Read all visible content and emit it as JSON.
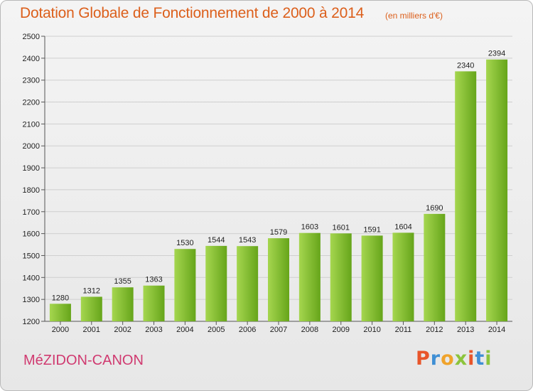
{
  "header": {
    "title": "Dotation Globale de Fonctionnement de 2000 à 2014",
    "unit": "(en milliers d'€)"
  },
  "footer": {
    "town": "MéZIDON-CANON",
    "logo_letters": [
      "P",
      "r",
      "o",
      "x",
      "i",
      "t",
      "i"
    ],
    "logo_colors": [
      "#e8552a",
      "#3f8fd4",
      "#f0a32b",
      "#8cc43c",
      "#e8552a",
      "#3f8fd4",
      "#8cc43c"
    ]
  },
  "colors": {
    "bar_light": "#a5d64f",
    "bar_dark": "#66a51a",
    "title": "#dc5f1b",
    "town": "#d03a70"
  },
  "chart_data": {
    "type": "bar",
    "title": "Dotation Globale de Fonctionnement de 2000 à 2014",
    "subtitle": "(en milliers d'€)",
    "xlabel": "",
    "ylabel": "",
    "categories": [
      "2000",
      "2001",
      "2002",
      "2003",
      "2004",
      "2005",
      "2006",
      "2007",
      "2008",
      "2009",
      "2010",
      "2011",
      "2012",
      "2013",
      "2014"
    ],
    "values": [
      1280,
      1312,
      1355,
      1363,
      1530,
      1544,
      1543,
      1579,
      1603,
      1601,
      1591,
      1604,
      1690,
      2340,
      2394
    ],
    "ylim": [
      1200,
      2500
    ],
    "yticks": [
      1200,
      1300,
      1400,
      1500,
      1600,
      1700,
      1800,
      1900,
      2000,
      2100,
      2200,
      2300,
      2400,
      2500
    ],
    "grid": true,
    "data_labels": true
  }
}
